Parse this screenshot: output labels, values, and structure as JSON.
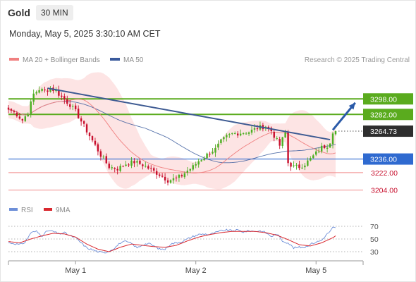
{
  "header": {
    "instrument": "Gold",
    "timeframe": "30 MIN",
    "datetime": "Monday, May 5, 2025 3:30:10 AM CET"
  },
  "legend": {
    "ma20": "MA 20 + Bollinger Bands",
    "ma50": "MA 50",
    "credit": "Research © 2025 Trading Central"
  },
  "rsi_legend": {
    "rsi": "RSI",
    "ma": "9MA"
  },
  "colors": {
    "up": "#4caf22",
    "down": "#c8102e",
    "ma20": "#f08080",
    "ma50": "#3a5a9c",
    "band_fill": "#fde4e4",
    "resistance": "#5aab1e",
    "pivot": "#2f6ad0",
    "support": "#f08a8a",
    "trendline": "#3d5a92",
    "arrow": "#2a5aa8",
    "rsi": "#6d8fd8",
    "rsi_ma": "#d9282f"
  },
  "chart_data": [
    {
      "type": "candlestick",
      "title": "",
      "instrument": "Gold",
      "timeframe": "30 MIN",
      "x_ticks": [
        "May 1",
        "May 2",
        "May 5"
      ],
      "ylim": [
        3195,
        3320
      ],
      "last_price": 3264.73,
      "levels": [
        {
          "label": "3298.00",
          "value": 3298.0,
          "kind": "resistance"
        },
        {
          "label": "3282.00",
          "value": 3282.0,
          "kind": "resistance"
        },
        {
          "label": "3236.00",
          "value": 3236.0,
          "kind": "pivot"
        },
        {
          "label": "3222.00",
          "value": 3222.0,
          "kind": "support"
        },
        {
          "label": "3204.00",
          "value": 3204.0,
          "kind": "support"
        }
      ],
      "last_price_label": "3264.73",
      "trendline": [
        {
          "bar": 14,
          "price": 3309
        },
        {
          "bar": 115,
          "price": 3256
        }
      ],
      "forecast_arrow": [
        {
          "bar": 116,
          "price": 3266
        },
        {
          "bar": 124,
          "price": 3294
        }
      ],
      "series": [
        {
          "name": "MA 20 + Bollinger Bands",
          "kind": "ma20_bollinger"
        },
        {
          "name": "MA 50",
          "kind": "ma50"
        }
      ],
      "close_path": [
        [
          0,
          3287
        ],
        [
          1,
          3286
        ],
        [
          3,
          3282
        ],
        [
          5,
          3276
        ],
        [
          7,
          3284
        ],
        [
          9,
          3303
        ],
        [
          11,
          3308
        ],
        [
          13,
          3306
        ],
        [
          15,
          3309
        ],
        [
          17,
          3306
        ],
        [
          19,
          3300
        ],
        [
          22,
          3292
        ],
        [
          24,
          3285
        ],
        [
          27,
          3270
        ],
        [
          30,
          3255
        ],
        [
          33,
          3240
        ],
        [
          36,
          3228
        ],
        [
          39,
          3226
        ],
        [
          42,
          3231
        ],
        [
          45,
          3233
        ],
        [
          48,
          3230
        ],
        [
          51,
          3225
        ],
        [
          54,
          3220
        ],
        [
          57,
          3214
        ],
        [
          60,
          3216
        ],
        [
          62,
          3219
        ],
        [
          64,
          3224
        ],
        [
          66,
          3228
        ],
        [
          68,
          3234
        ],
        [
          70,
          3238
        ],
        [
          72,
          3243
        ],
        [
          74,
          3246
        ],
        [
          76,
          3254
        ],
        [
          78,
          3259
        ],
        [
          80,
          3262
        ],
        [
          83,
          3263
        ],
        [
          86,
          3264
        ],
        [
          89,
          3268
        ],
        [
          92,
          3270
        ],
        [
          94,
          3265
        ],
        [
          96,
          3255
        ],
        [
          97,
          3250
        ],
        [
          99,
          3263
        ],
        [
          100,
          3232
        ],
        [
          102,
          3228
        ],
        [
          104,
          3228
        ],
        [
          106,
          3231
        ],
        [
          108,
          3236
        ],
        [
          110,
          3242
        ],
        [
          112,
          3248
        ],
        [
          114,
          3250
        ],
        [
          115,
          3254
        ],
        [
          116,
          3264.73
        ]
      ],
      "x_tick_bars": [
        24,
        67,
        110
      ]
    },
    {
      "type": "line",
      "title": "",
      "ylim": [
        20,
        80
      ],
      "y_ticks": [
        70,
        50,
        30
      ],
      "series": [
        {
          "name": "RSI",
          "values_path": [
            [
              0,
              44
            ],
            [
              2,
              43
            ],
            [
              4,
              41
            ],
            [
              6,
              45
            ],
            [
              8,
              60
            ],
            [
              10,
              62
            ],
            [
              12,
              55
            ],
            [
              14,
              63
            ],
            [
              16,
              62
            ],
            [
              18,
              58
            ],
            [
              20,
              60
            ],
            [
              22,
              55
            ],
            [
              24,
              52
            ],
            [
              26,
              44
            ],
            [
              28,
              36
            ],
            [
              30,
              33
            ],
            [
              32,
              30
            ],
            [
              34,
              28
            ],
            [
              36,
              31
            ],
            [
              38,
              36
            ],
            [
              40,
              44
            ],
            [
              42,
              46
            ],
            [
              44,
              43
            ],
            [
              46,
              36
            ],
            [
              48,
              41
            ],
            [
              50,
              43
            ],
            [
              52,
              39
            ],
            [
              54,
              34
            ],
            [
              56,
              34
            ],
            [
              58,
              42
            ],
            [
              60,
              44
            ],
            [
              62,
              46
            ],
            [
              64,
              50
            ],
            [
              66,
              54
            ],
            [
              68,
              57
            ],
            [
              70,
              58
            ],
            [
              72,
              57
            ],
            [
              74,
              60
            ],
            [
              76,
              63
            ],
            [
              78,
              64
            ],
            [
              80,
              63
            ],
            [
              82,
              64
            ],
            [
              84,
              61
            ],
            [
              86,
              63
            ],
            [
              88,
              62
            ],
            [
              90,
              63
            ],
            [
              92,
              60
            ],
            [
              94,
              54
            ],
            [
              96,
              58
            ],
            [
              98,
              47
            ],
            [
              100,
              44
            ],
            [
              102,
              36
            ],
            [
              104,
              37
            ],
            [
              106,
              37
            ],
            [
              108,
              42
            ],
            [
              110,
              45
            ],
            [
              112,
              48
            ],
            [
              114,
              58
            ],
            [
              115,
              62
            ],
            [
              116,
              68
            ],
            [
              117,
              67
            ]
          ]
        },
        {
          "name": "9MA",
          "values_path": [
            [
              0,
              46
            ],
            [
              4,
              44
            ],
            [
              8,
              50
            ],
            [
              12,
              55
            ],
            [
              16,
              59
            ],
            [
              20,
              58
            ],
            [
              24,
              53
            ],
            [
              28,
              42
            ],
            [
              32,
              34
            ],
            [
              36,
              30
            ],
            [
              40,
              37
            ],
            [
              44,
              42
            ],
            [
              48,
              40
            ],
            [
              52,
              38
            ],
            [
              56,
              37
            ],
            [
              60,
              40
            ],
            [
              64,
              47
            ],
            [
              68,
              53
            ],
            [
              72,
              57
            ],
            [
              76,
              60
            ],
            [
              80,
              62
            ],
            [
              84,
              62
            ],
            [
              88,
              62
            ],
            [
              92,
              60
            ],
            [
              96,
              56
            ],
            [
              100,
              49
            ],
            [
              104,
              41
            ],
            [
              108,
              39
            ],
            [
              112,
              44
            ],
            [
              116,
              52
            ],
            [
              117,
              55
            ]
          ]
        }
      ]
    }
  ]
}
